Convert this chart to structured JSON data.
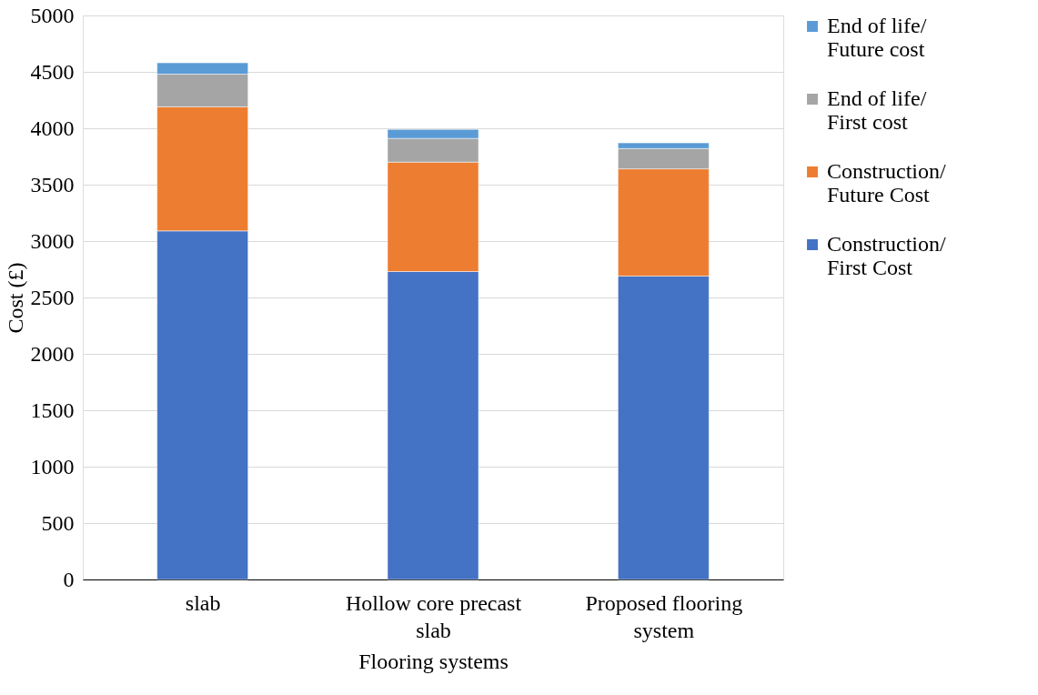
{
  "chart_data": {
    "type": "bar",
    "stacked": true,
    "xlabel": "Flooring systems",
    "ylabel": "Cost (£)",
    "categories": [
      "slab",
      "Hollow core precast slab",
      "Proposed flooring system"
    ],
    "series": [
      {
        "name": "Construction/ First Cost",
        "color": "#4472c4",
        "values": [
          3090,
          2730,
          2690
        ]
      },
      {
        "name": "Construction/ Future Cost",
        "color": "#ed7d31",
        "values": [
          1100,
          970,
          950
        ]
      },
      {
        "name": "End of life/ First cost",
        "color": "#a5a5a5",
        "values": [
          290,
          210,
          180
        ]
      },
      {
        "name": "End of life/ Future cost",
        "color": "#5b9bd5",
        "values": [
          100,
          80,
          50
        ]
      }
    ],
    "ylim": [
      0,
      5000
    ],
    "yticks": [
      0,
      500,
      1000,
      1500,
      2000,
      2500,
      3000,
      3500,
      4000,
      4500,
      5000
    ],
    "grid": "y",
    "legend": "right"
  }
}
